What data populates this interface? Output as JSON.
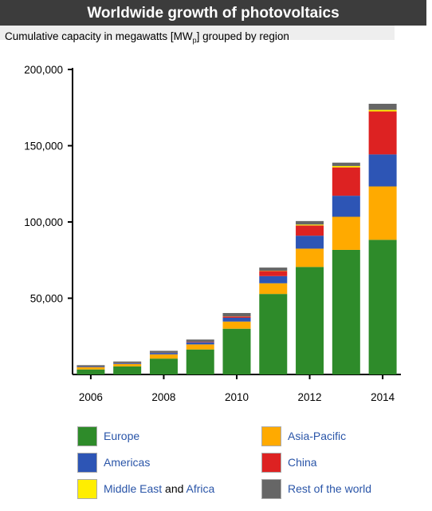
{
  "header": {
    "title": "Worldwide growth of photovoltaics",
    "subtitle_pre": "Cumulative capacity in megawatts [MW",
    "subtitle_sub": "p",
    "subtitle_post": "] grouped by region"
  },
  "legend": {
    "europe": "Europe",
    "asia_pacific": "Asia-Pacific",
    "americas": "Americas",
    "china": "China",
    "middle_east": "Middle East",
    "and": "and",
    "africa": "Africa",
    "rest": "Rest of the world"
  },
  "colors": {
    "europe": "#2e8b2a",
    "asia_pacific": "#ffaa00",
    "americas": "#2d55b5",
    "china": "#dd2222",
    "middle_east_africa": "#ffee00",
    "rest": "#666666"
  },
  "chart_data": {
    "type": "bar",
    "stacked": true,
    "categories": [
      "2006",
      "2007",
      "2008",
      "2009",
      "2010",
      "2011",
      "2012",
      "2013",
      "2014"
    ],
    "x_tick_labels": [
      "2006",
      "2008",
      "2010",
      "2012",
      "2014"
    ],
    "ylim": [
      0,
      200000
    ],
    "y_ticks": [
      50000,
      100000,
      150000,
      200000
    ],
    "y_tick_labels": [
      "50,000",
      "100,000",
      "150,000",
      "200,000"
    ],
    "series": [
      {
        "name": "Europe",
        "color": "#2e8b2a",
        "values": [
          3300,
          5300,
          10400,
          16400,
          30000,
          52800,
          70500,
          81700,
          88300
        ]
      },
      {
        "name": "Asia-Pacific",
        "color": "#ffaa00",
        "values": [
          1400,
          1600,
          2800,
          3300,
          4700,
          7000,
          12000,
          21700,
          35000
        ]
      },
      {
        "name": "Americas",
        "color": "#2d55b5",
        "values": [
          300,
          500,
          900,
          1400,
          2500,
          4700,
          8500,
          13800,
          21000
        ]
      },
      {
        "name": "China",
        "color": "#dd2222",
        "values": [
          100,
          100,
          100,
          300,
          800,
          3300,
          6700,
          18600,
          28200
        ]
      },
      {
        "name": "Middle East and Africa",
        "color": "#ffee00",
        "values": [
          0,
          0,
          0,
          0,
          100,
          200,
          600,
          900,
          1000
        ]
      },
      {
        "name": "Rest of the world",
        "color": "#666666",
        "values": [
          1000,
          1000,
          1300,
          1500,
          2200,
          2100,
          2300,
          2200,
          4000
        ]
      }
    ]
  }
}
